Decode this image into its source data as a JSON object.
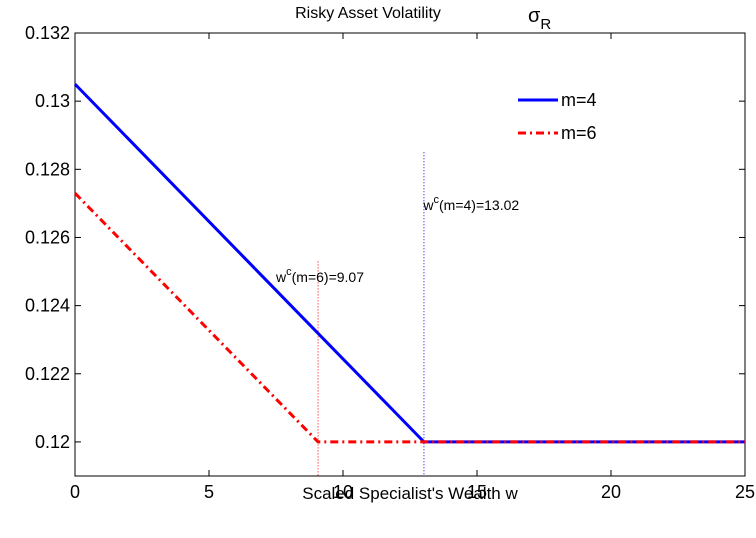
{
  "chart_data": {
    "type": "line",
    "title": "Risky Asset Volatility",
    "title_symbol": "σ",
    "title_symbol_subscript": "R",
    "xlabel": "Scaled Specialist's Wealth w",
    "ylabel": "",
    "xlim": [
      0,
      25
    ],
    "ylim": [
      0.119,
      0.132
    ],
    "xticks": [
      0,
      5,
      10,
      15,
      20,
      25
    ],
    "xtick_labels": [
      "0",
      "5",
      "10",
      "15",
      "20",
      "25"
    ],
    "yticks": [
      0.12,
      0.122,
      0.124,
      0.126,
      0.128,
      0.13,
      0.132
    ],
    "ytick_labels": [
      "0.12",
      "0.122",
      "0.124",
      "0.126",
      "0.128",
      "0.13",
      "0.132"
    ],
    "grid": false,
    "legend_position": "top-right",
    "series": [
      {
        "name": "m=4",
        "color": "#0000ff",
        "style": "solid",
        "x": [
          0,
          13.02,
          25
        ],
        "y": [
          0.1305,
          0.12,
          0.12
        ]
      },
      {
        "name": "m=6",
        "color": "#ff0000",
        "style": "dashdot",
        "x": [
          0,
          9.07,
          25
        ],
        "y": [
          0.1273,
          0.12,
          0.12
        ]
      }
    ],
    "vertical_lines": [
      {
        "x": 9.07,
        "color": "#ff0000",
        "style": "dotted",
        "y_top": 0.1253
      },
      {
        "x": 13.02,
        "color": "#0000ff",
        "style": "dotted",
        "y_top": 0.1285
      }
    ],
    "annotations": [
      {
        "base": "w",
        "sup": "c",
        "rest": "(m=6)=9.07",
        "x": 7.5,
        "y": 0.1247
      },
      {
        "base": "w",
        "sup": "c",
        "rest": "(m=4)=13.02",
        "x": 13.0,
        "y": 0.1268
      }
    ]
  }
}
